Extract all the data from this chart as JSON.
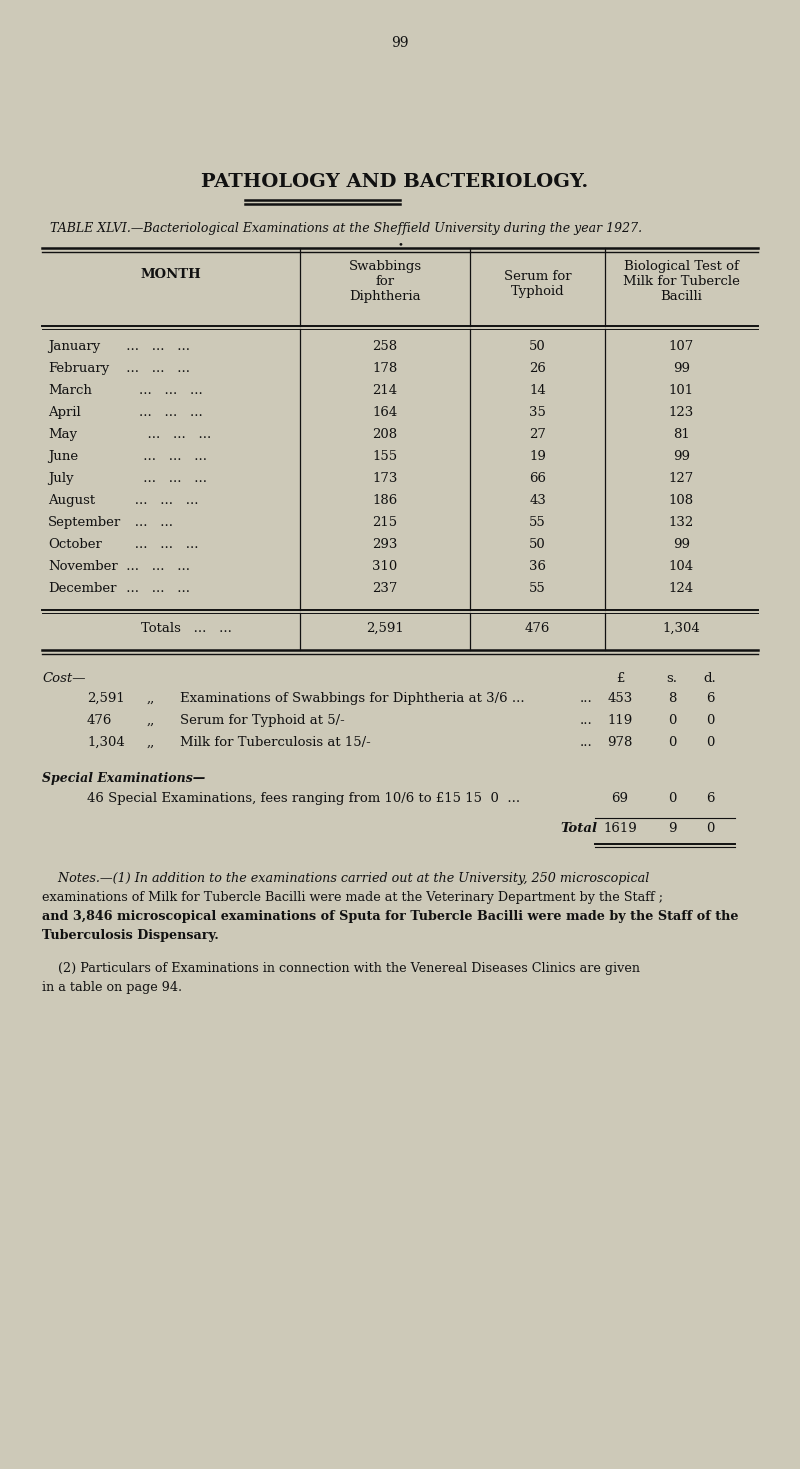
{
  "page_number": "99",
  "main_title": "PATHOLOGY AND BACTERIOLOGY.",
  "table_title": "TABLE XLVI.—Bacteriological Examinations at the Sheffield University during the year 1927.",
  "col_headers": [
    "MONTH",
    "Swabbings\nfor\nDiphtheria",
    "Serum for\nTyphoid",
    "Biological Test of\nMilk for Tubercle\nBacilli"
  ],
  "months_short": [
    "January",
    "February",
    "March",
    "April",
    "May",
    "June",
    "July",
    "August",
    "September",
    "October",
    "November",
    "December"
  ],
  "months_dots": [
    " ...   ...   ...",
    " ...   ...   ...",
    "    ...   ...   ...",
    "    ...   ...   ...",
    "      ...   ...   ...",
    "     ...   ...   ...",
    "     ...   ...   ...",
    "   ...   ...   ...",
    "   ...   ...",
    "   ...   ...   ...",
    " ...   ...   ...",
    " ...   ...   ..."
  ],
  "swabbings": [
    258,
    178,
    214,
    164,
    208,
    155,
    173,
    186,
    215,
    293,
    310,
    237
  ],
  "serum": [
    50,
    26,
    14,
    35,
    27,
    19,
    66,
    43,
    55,
    50,
    36,
    55
  ],
  "milk": [
    107,
    99,
    101,
    123,
    81,
    99,
    127,
    108,
    132,
    99,
    104,
    124
  ],
  "totals_formatted": [
    "2,591",
    "476",
    "1,304"
  ],
  "bg_color": "#cdc9b8",
  "text_color": "#111111",
  "font_size_title": 14,
  "font_size_table": 9.5,
  "font_size_notes": 9.2
}
